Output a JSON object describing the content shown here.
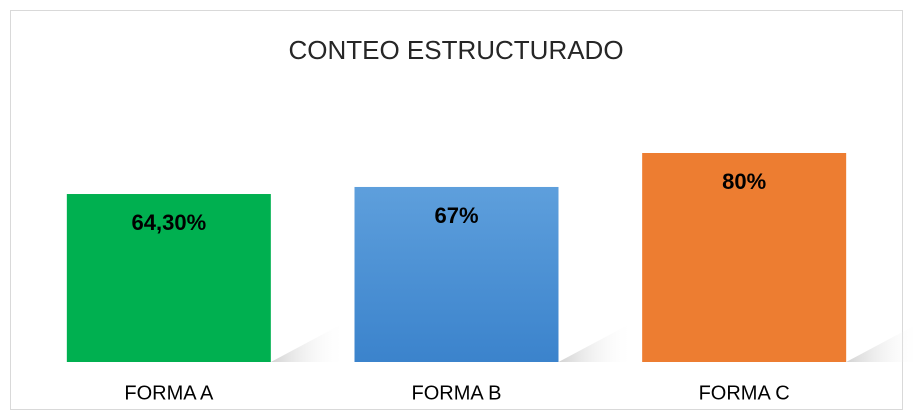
{
  "chart_data": {
    "type": "bar",
    "title": "CONTEO ESTRUCTURADO",
    "categories": [
      "FORMA A",
      "FORMA B",
      "FORMA C"
    ],
    "values": [
      64.3,
      67,
      80
    ],
    "value_labels": [
      "64,30%",
      "67%",
      "80%"
    ],
    "colors": [
      "#00b050",
      "#4a90d6",
      "#ed7d31"
    ]
  }
}
